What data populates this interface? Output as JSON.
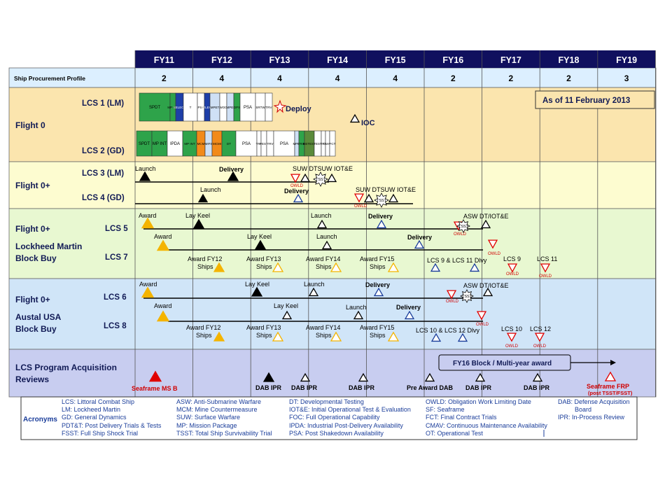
{
  "fiscal_years": [
    "FY11",
    "FY12",
    "FY13",
    "FY14",
    "FY15",
    "FY16",
    "FY17",
    "FY18",
    "FY19"
  ],
  "procurement": {
    "label": "Ship Procurement Profile",
    "values": [
      "2",
      "4",
      "4",
      "4",
      "4",
      "2",
      "2",
      "2",
      "3"
    ]
  },
  "as_of": "As of 11 February 2013",
  "rows": {
    "flight0": "Flight 0",
    "flight0plus": "Flight 0+",
    "lm_flight": "Flight 0+",
    "lm_block_1": "Lockheed Martin",
    "lm_block_2": "Block Buy",
    "austal_flight": "Flight 0+",
    "austal_block_1": "Austal USA",
    "austal_block_2": "Block Buy",
    "reviews_1": "LCS Program Acquisition",
    "reviews_2": "Reviews"
  },
  "ships": {
    "lcs1": "LCS 1 (LM)",
    "lcs2": "LCS 2 (GD)",
    "lcs3": "LCS 3 (LM)",
    "lcs4": "LCS 4 (GD)",
    "lcs5": "LCS 5",
    "lcs7": "LCS 7",
    "lcs6": "LCS 6",
    "lcs8": "LCS 8"
  },
  "lcs1_blocks": [
    "SPDT",
    "MP INT",
    "SELECT",
    "T",
    "PSA",
    "SELECT",
    "MPET",
    "WOC",
    "MPEI",
    "DPS",
    "PSA",
    "SRTW",
    "TRV"
  ],
  "lcs2_blocks": [
    "SPDT",
    "MP INT",
    "IPDA",
    "MP INT",
    "MCM",
    "MIFS",
    "MCMI",
    "DT",
    "PSA",
    "TRV",
    "FEST",
    "TRV",
    "PSA",
    "MPEI",
    "TRIM",
    "RETEST",
    "TEST",
    "TRV",
    "CMAV",
    "FCT"
  ],
  "labels": {
    "deploy": "Deploy",
    "ioc": "IOC",
    "launch": "Launch",
    "delivery": "Delivery",
    "award": "Award",
    "lay_keel": "Lay Keel",
    "owld": "OWLD",
    "tsst": "TSST",
    "fsst": "FSST",
    "suw_dt_iote": "SUW DTSUW IOT&E",
    "asw_dt_iote": "ASW DT/IOT&E",
    "award_fy12": "Award FY12",
    "award_fy13": "Award FY13",
    "award_fy14": "Award FY14",
    "award_fy15": "Award FY15",
    "ships": "Ships",
    "lcs9_11": "LCS 9  &  LCS 11 Dlvy",
    "lcs9": "LCS 9",
    "lcs11": "LCS 11",
    "lcs10_12": "LCS 10  & LCS 12 Dlvy",
    "lcs10": "LCS 10",
    "lcs12": "LCS 12",
    "fy16_block": "FY16 Block / Multi-year award",
    "seaframe_msb": "Seaframe MS B",
    "dab_ipr": "DAB IPR",
    "pre_award_dab": "Pre Award DAB",
    "seaframe_frp": "Seaframe FRP",
    "frp_note": "(post TSST/FSST)"
  },
  "acronyms_title": "Acronyms",
  "acronyms": [
    [
      "LCS: Littoral Combat Ship",
      "LM: Lockheed Martin",
      "GD: General Dynamics",
      "PDT&T: Post Delivery Trials & Tests",
      "FSST: Full Ship Shock Trial"
    ],
    [
      "ASW: Anti-Submarine Warfare",
      "MCM: Mine Countermeasure",
      "SUW: Surface Warfare",
      "MP: Mission Package",
      "TSST: Total Ship Survivability Trial"
    ],
    [
      "DT: Developmental Testing",
      "IOT&E: Initial Operational Test & Evaluation",
      "FOC: Full Operational Capability",
      "IPDA: Industrial Post-Delivery Availability",
      "PSA: Post Shakedown Availability"
    ],
    [
      "OWLD: Obligation Work Limiting Date",
      "SF: Seaframe",
      "FCT: Final Contract Trials",
      "CMAV: Continuous Maintenance Availability",
      "OT: Operational Test"
    ],
    [
      "DAB: Defense Acquisition",
      "Board",
      "IPR: In-Process Review"
    ]
  ],
  "colors": {
    "header": "#10105e",
    "band_orange": "#fbe5ae",
    "band_yellow": "#fdfcd0",
    "band_green": "#e8f8d1",
    "band_blue": "#d0e5f8",
    "band_purple": "#c8cdf0",
    "triangle_yellow": "#f4b400",
    "triangle_red": "#e00000",
    "acronym_text": "#1a3d9a"
  }
}
